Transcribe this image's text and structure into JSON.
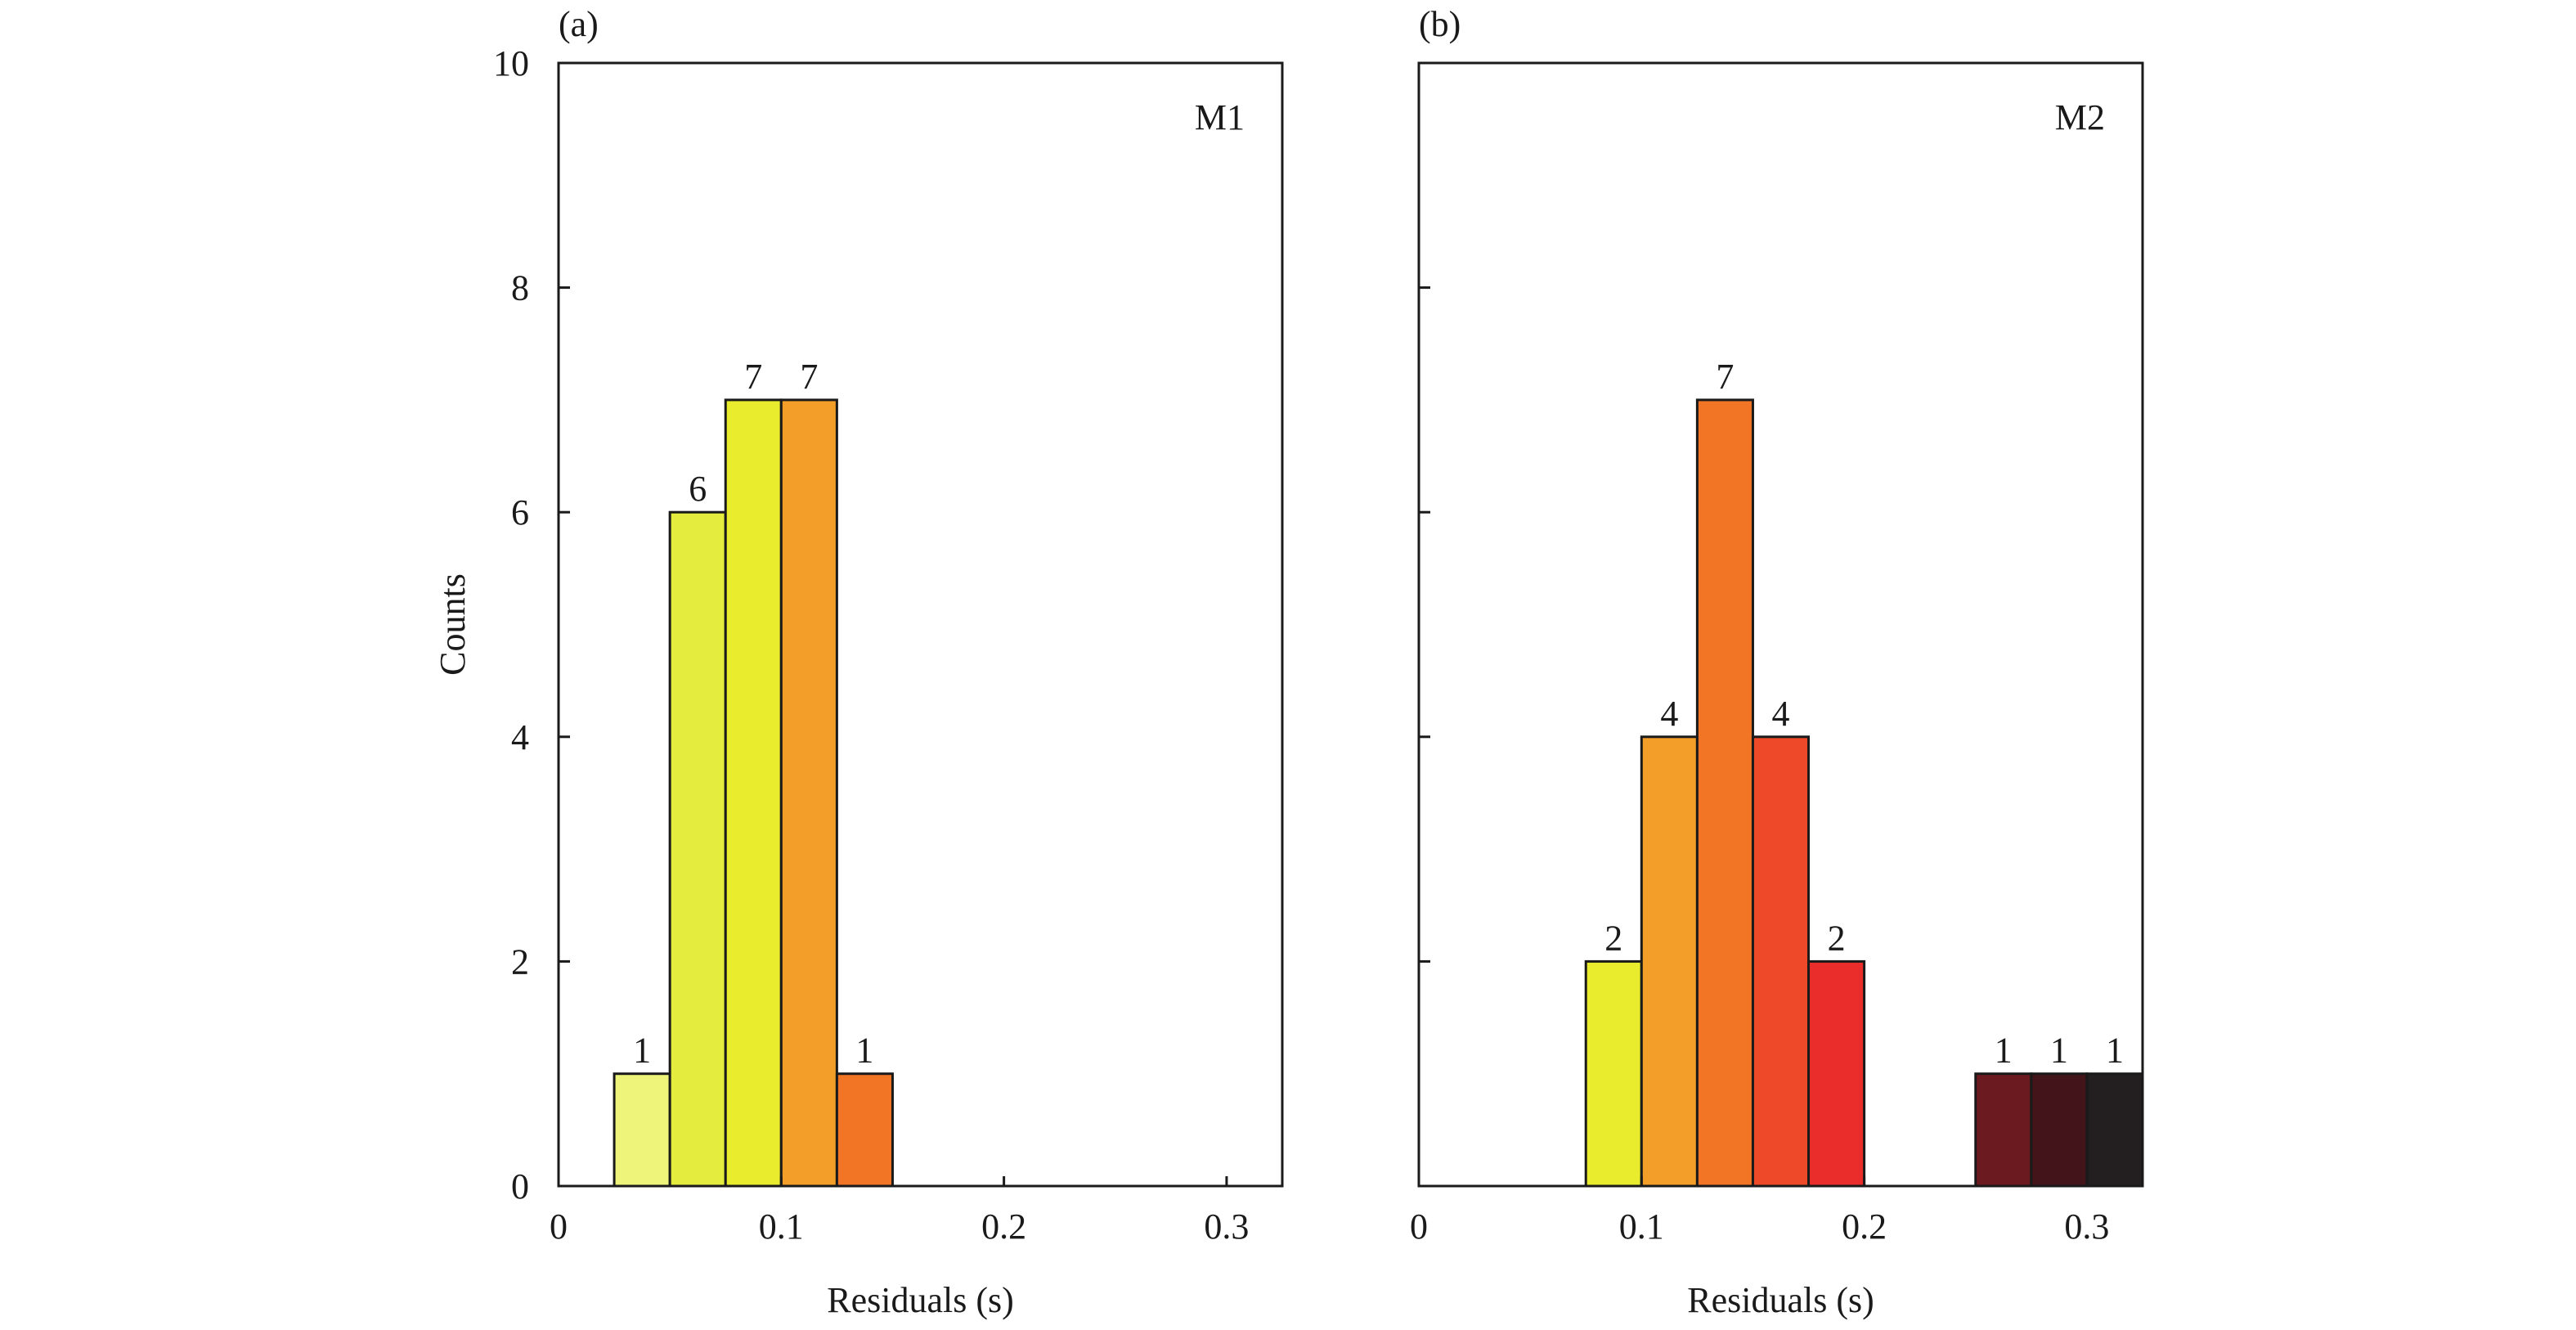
{
  "chart_data": [
    {
      "type": "bar",
      "panel_tag": "(a)",
      "model_label": "M1",
      "xlabel": "Residuals (s)",
      "ylabel": "Counts",
      "xlim": [
        0,
        0.325
      ],
      "ylim": [
        0,
        10
      ],
      "x_ticks": [
        0,
        0.1,
        0.2,
        0.3
      ],
      "x_tick_labels": [
        "0",
        "0.1",
        "0.2",
        "0.3"
      ],
      "y_ticks": [
        0,
        2,
        4,
        6,
        8,
        10
      ],
      "y_tick_labels": [
        "0",
        "2",
        "4",
        "6",
        "8",
        "10"
      ],
      "bin_width": 0.025,
      "bins": [
        {
          "x0": 0.025,
          "value": 1,
          "label": "1",
          "color": "#EEF47A"
        },
        {
          "x0": 0.05,
          "value": 6,
          "label": "6",
          "color": "#E4EC3E"
        },
        {
          "x0": 0.075,
          "value": 7,
          "label": "7",
          "color": "#E9EC2C"
        },
        {
          "x0": 0.1,
          "value": 7,
          "label": "7",
          "color": "#F39E28"
        },
        {
          "x0": 0.125,
          "value": 1,
          "label": "1",
          "color": "#F17525"
        }
      ]
    },
    {
      "type": "bar",
      "panel_tag": "(b)",
      "model_label": "M2",
      "xlabel": "Residuals (s)",
      "ylabel": "",
      "xlim": [
        0,
        0.325
      ],
      "ylim": [
        0,
        10
      ],
      "x_ticks": [
        0,
        0.1,
        0.2,
        0.3
      ],
      "x_tick_labels": [
        "0",
        "0.1",
        "0.2",
        "0.3"
      ],
      "y_ticks": [
        0,
        2,
        4,
        6,
        8,
        10
      ],
      "y_tick_labels": [],
      "bin_width": 0.025,
      "bins": [
        {
          "x0": 0.075,
          "value": 2,
          "label": "2",
          "color": "#E9EC2C"
        },
        {
          "x0": 0.1,
          "value": 4,
          "label": "4",
          "color": "#F39E28"
        },
        {
          "x0": 0.125,
          "value": 7,
          "label": "7",
          "color": "#F17525"
        },
        {
          "x0": 0.15,
          "value": 4,
          "label": "4",
          "color": "#EE4A2A"
        },
        {
          "x0": 0.175,
          "value": 2,
          "label": "2",
          "color": "#EA2D2A"
        },
        {
          "x0": 0.25,
          "value": 1,
          "label": "1",
          "color": "#6B1A20"
        },
        {
          "x0": 0.275,
          "value": 1,
          "label": "1",
          "color": "#431419"
        },
        {
          "x0": 0.3,
          "value": 1,
          "label": "1",
          "color": "#231F20"
        }
      ]
    }
  ]
}
